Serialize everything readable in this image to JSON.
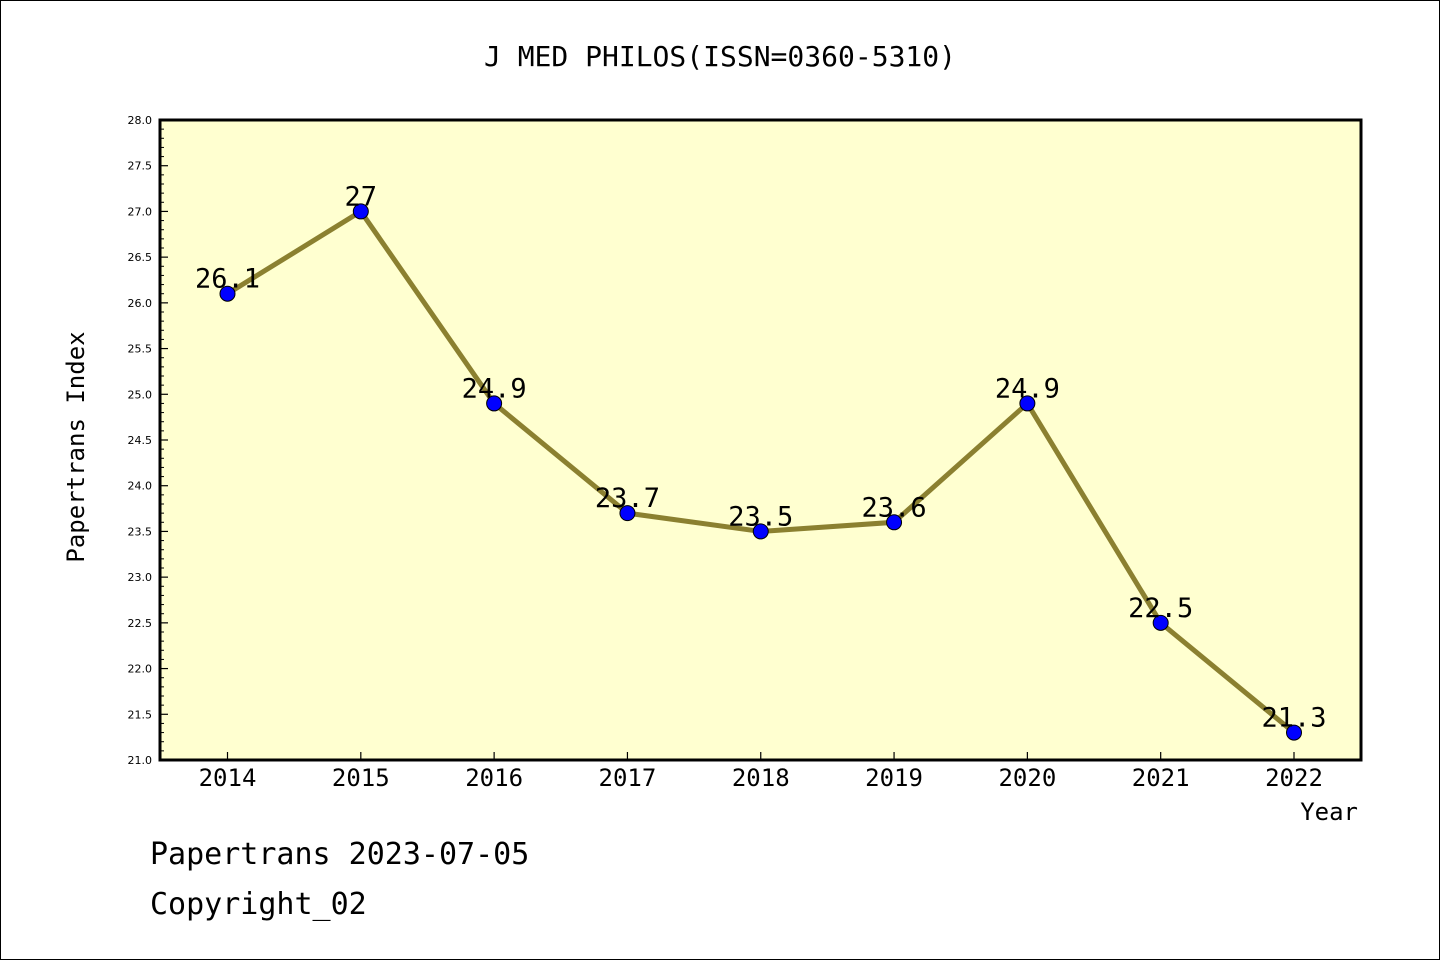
{
  "chart_data": {
    "type": "line",
    "title": "J MED PHILOS(ISSN=0360-5310)",
    "xlabel": "Year",
    "ylabel": "Papertrans Index",
    "categories": [
      "2014",
      "2015",
      "2016",
      "2017",
      "2018",
      "2019",
      "2020",
      "2021",
      "2022"
    ],
    "values": [
      26.1,
      27,
      24.9,
      23.7,
      23.5,
      23.6,
      24.9,
      22.5,
      21.3
    ],
    "data_labels": [
      "26.1",
      "27",
      "24.9",
      "23.7",
      "23.5",
      "23.6",
      "24.9",
      "22.5",
      "21.3"
    ],
    "ylim": [
      21.0,
      28.0
    ],
    "yticks": [
      "21.0",
      "21.5",
      "22.0",
      "22.5",
      "23.0",
      "23.5",
      "24.0",
      "24.5",
      "25.0",
      "25.5",
      "26.0",
      "26.5",
      "27.0",
      "27.5",
      "28.0"
    ],
    "grid": false,
    "colors": {
      "plot_background": "#ffffd0",
      "line": "#8b8030",
      "marker": "#0000ff"
    }
  },
  "footer": {
    "line1": "Papertrans 2023-07-05",
    "line2": "Copyright_02"
  }
}
